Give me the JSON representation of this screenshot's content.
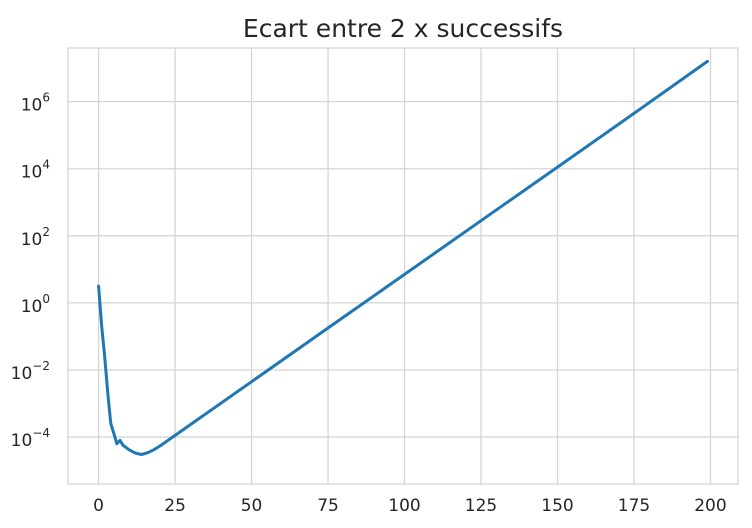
{
  "chart_data": {
    "type": "line",
    "title": "Ecart entre 2 x successifs",
    "xlabel": "",
    "ylabel": "",
    "y_scale": "log",
    "grid": true,
    "xlim": [
      -10,
      209
    ],
    "ylim_exp": [
      -5.4,
      7.6
    ],
    "x_ticks": [
      0,
      25,
      50,
      75,
      100,
      125,
      150,
      175,
      200
    ],
    "y_ticks_exp": [
      -4,
      -2,
      0,
      2,
      4,
      6
    ],
    "y_tick_base": "10",
    "color": "#1f77b4",
    "series": [
      {
        "x": [
          0,
          1,
          2,
          3,
          4,
          5,
          6,
          7,
          8,
          10,
          12,
          14,
          16,
          18,
          20,
          25,
          30,
          50,
          75,
          100,
          125,
          150,
          175,
          199
        ],
        "y_log10": [
          0.5,
          -0.7,
          -1.6,
          -2.7,
          -3.6,
          -3.9,
          -4.2,
          -4.1,
          -4.25,
          -4.38,
          -4.48,
          -4.52,
          -4.47,
          -4.38,
          -4.27,
          -3.95,
          -3.63,
          -2.35,
          -0.75,
          0.85,
          2.45,
          4.05,
          5.65,
          7.2
        ]
      }
    ]
  }
}
